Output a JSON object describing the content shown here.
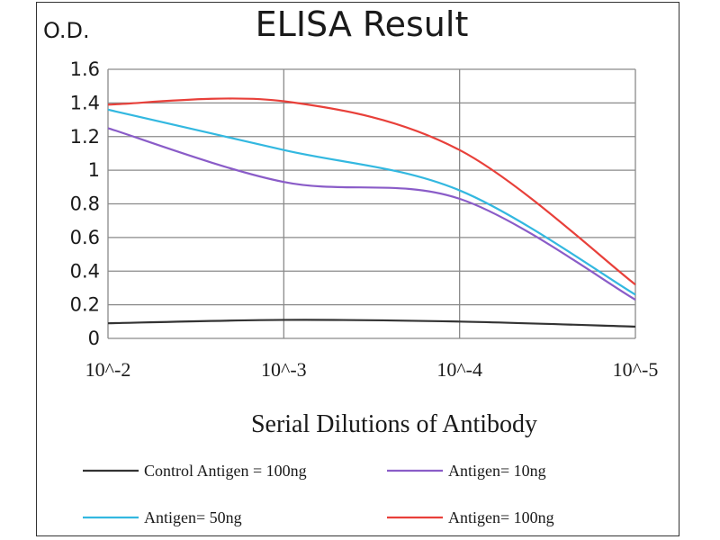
{
  "chart_data": {
    "type": "line",
    "title": "ELISA Result",
    "ylabel": "O.D.",
    "xlabel": "Serial Dilutions  of Antibody",
    "categories": [
      "10^-2",
      "10^-3",
      "10^-4",
      "10^-5"
    ],
    "y_ticks": [
      "0",
      "0.2",
      "0.4",
      "0.6",
      "0.8",
      "1",
      "1.2",
      "1.4",
      "1.6"
    ],
    "ylim": [
      0,
      1.6
    ],
    "grid": true,
    "legend_position": "bottom",
    "series": [
      {
        "name": "Control Antigen = 100ng",
        "color": "#333333",
        "values": [
          0.09,
          0.11,
          0.1,
          0.07
        ]
      },
      {
        "name": "Antigen= 10ng",
        "color": "#8a5cc8",
        "values": [
          1.25,
          0.93,
          0.83,
          0.23
        ]
      },
      {
        "name": "Antigen= 50ng",
        "color": "#33b8e0",
        "values": [
          1.36,
          1.12,
          0.88,
          0.26
        ]
      },
      {
        "name": "Antigen= 100ng",
        "color": "#e8403a",
        "values": [
          1.39,
          1.41,
          1.12,
          0.32
        ]
      }
    ]
  }
}
